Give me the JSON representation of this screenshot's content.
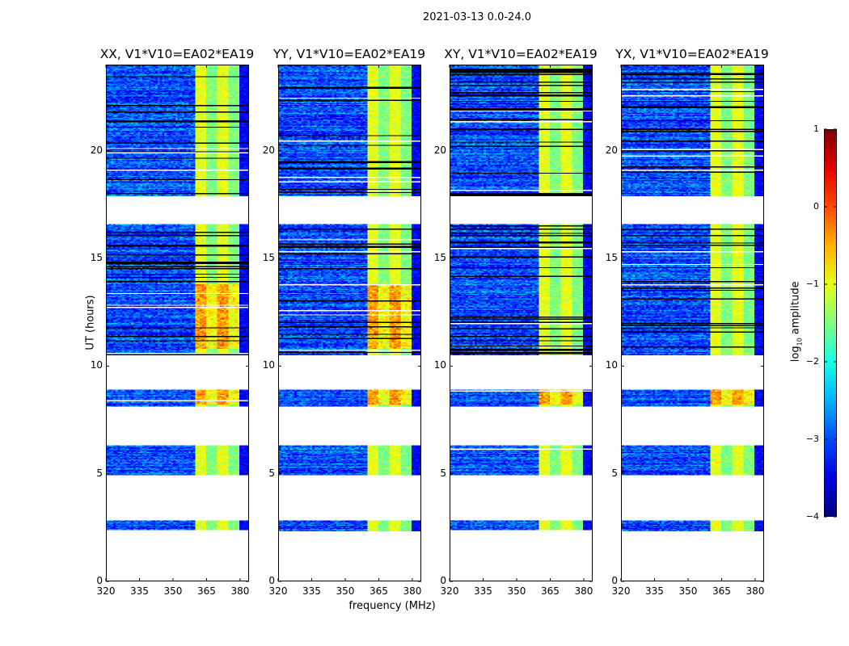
{
  "chart_data": {
    "type": "heatmap",
    "title": "2021-03-13 0.0-24.0",
    "xlabel": "frequency (MHz)",
    "ylabel": "UT (hours)",
    "xlim": [
      320,
      384
    ],
    "ylim": [
      0,
      24
    ],
    "xticks": [
      "320",
      "335",
      "350",
      "365",
      "380"
    ],
    "yticks": [
      "0",
      "5",
      "10",
      "15",
      "20"
    ],
    "panels": [
      {
        "title": "XX, V1*V10=EA02*EA19"
      },
      {
        "title": "YY, V1*V10=EA02*EA19"
      },
      {
        "title": "XY, V1*V10=EA02*EA19"
      },
      {
        "title": "YX, V1*V10=EA02*EA19"
      }
    ],
    "time_coverage_hours": [
      [
        2.3,
        2.8
      ],
      [
        4.9,
        6.3
      ],
      [
        8.1,
        8.9
      ],
      [
        10.5,
        16.6
      ],
      [
        17.9,
        24.0
      ]
    ],
    "bright_band_mhz": [
      360,
      380
    ],
    "typical_log10_amplitude": {
      "background": -3,
      "band": -1,
      "band_peak": 0
    },
    "colorbar": {
      "label_prefix": "log",
      "label_sub": "10",
      "label_suffix": " amplitude",
      "colormap": "jet",
      "range": [
        -4,
        1
      ],
      "ticks": [
        "1",
        "0",
        "−1",
        "−2",
        "−3",
        "−4"
      ]
    }
  }
}
